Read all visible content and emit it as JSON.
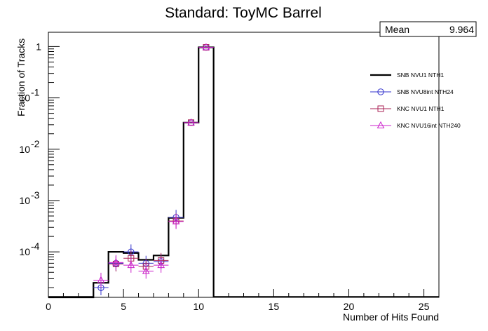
{
  "chart_data": {
    "type": "line",
    "title": "Standard: ToyMC Barrel",
    "xlabel": "Number of Hits Found",
    "ylabel": "Fraction of Tracks",
    "xlim": [
      0,
      26
    ],
    "ylim": [
      1.3e-05,
      1.9
    ],
    "yscale": "log",
    "grid": false,
    "legend_position": "right",
    "x_ticks": [
      0,
      5,
      10,
      15,
      20,
      25
    ],
    "y_ticks": [
      {
        "value": 0.0001,
        "base": "10",
        "exp": "-4"
      },
      {
        "value": 0.001,
        "base": "10",
        "exp": "-3"
      },
      {
        "value": 0.01,
        "base": "10",
        "exp": "-2"
      },
      {
        "value": 0.1,
        "base": "10",
        "exp": "-1"
      },
      {
        "value": 1,
        "base": "1",
        "exp": ""
      }
    ],
    "stats": {
      "label": "Mean",
      "value": "9.964"
    },
    "series": [
      {
        "name": "SNB NVU1 NTH1",
        "style": "hist",
        "color": "#000000",
        "bins": [
          [
            3,
            4,
            2.5e-05
          ],
          [
            4,
            5,
            0.0001
          ],
          [
            5,
            6,
            9.5e-05
          ],
          [
            6,
            7,
            7e-05
          ],
          [
            7,
            8,
            8.5e-05
          ],
          [
            8,
            9,
            0.00046
          ],
          [
            9,
            10,
            0.033
          ],
          [
            10,
            11,
            0.965
          ]
        ]
      },
      {
        "name": "SNB NVU8int NTH24",
        "style": "marker",
        "marker": "circle",
        "color": "#3333cc",
        "points": [
          [
            3.5,
            2e-05
          ],
          [
            4.5,
            6e-05
          ],
          [
            5.5,
            0.0001
          ],
          [
            6.5,
            6e-05
          ],
          [
            7.5,
            6.5e-05
          ],
          [
            8.5,
            0.00047
          ],
          [
            9.5,
            0.033
          ],
          [
            10.5,
            0.965
          ]
        ]
      },
      {
        "name": "KNC NVU1 NTH1",
        "style": "marker",
        "marker": "square",
        "color": "#aa2255",
        "points": [
          [
            4.5,
            5.8e-05
          ],
          [
            5.5,
            7.5e-05
          ],
          [
            6.5,
            5.2e-05
          ],
          [
            7.5,
            6.8e-05
          ],
          [
            8.5,
            0.0004
          ],
          [
            9.5,
            0.033
          ],
          [
            10.5,
            0.965
          ]
        ]
      },
      {
        "name": "KNC NVU16int NTH240",
        "style": "marker",
        "marker": "triangle",
        "color": "#cc22cc",
        "points": [
          [
            3.5,
            2.8e-05
          ],
          [
            4.5,
            6.2e-05
          ],
          [
            5.5,
            5.5e-05
          ],
          [
            6.5,
            4.2e-05
          ],
          [
            7.5,
            5.5e-05
          ],
          [
            8.5,
            0.00039
          ],
          [
            9.5,
            0.033
          ],
          [
            10.5,
            0.965
          ]
        ]
      }
    ]
  }
}
